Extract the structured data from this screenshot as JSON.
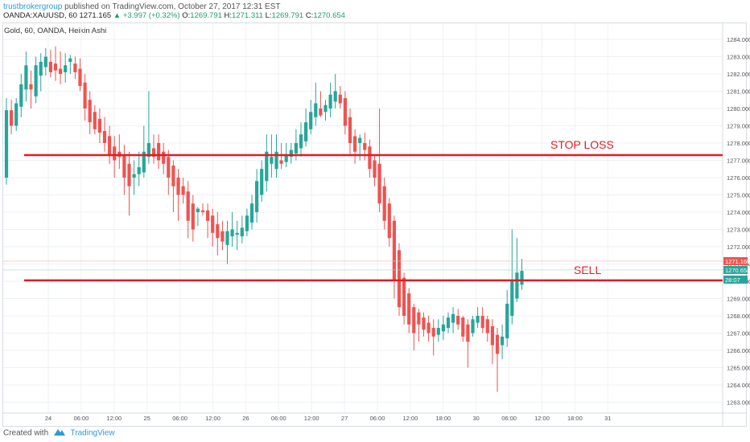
{
  "header": {
    "author": "trustbrokergroup",
    "published": "published on TradingView.com, October 27, 2017 12:31 EST",
    "symbol": "OANDA:XAUUSD, 60",
    "last": "1271.165",
    "change": "▲ +3.997 (+0.32%)",
    "o_label": "O:",
    "o_val": "1269.791",
    "h_label": "H:",
    "h_val": "1271.311",
    "l_label": "L:",
    "l_val": "1269.791",
    "c_label": "C:",
    "c_val": "1270.654"
  },
  "legend": "Gold, 60, OANDA, Heikin Ashi",
  "footer": {
    "created_with": "Created with",
    "brand": "TradingView"
  },
  "colors": {
    "up": "#26a69a",
    "down": "#ef5350",
    "level_line": "#e31b23",
    "last_badge": "#ef5350",
    "close_badge": "#26a69a"
  },
  "chart_data": {
    "type": "candlestick",
    "style": "Heikin Ashi",
    "ylim": [
      1262.5,
      1284.5
    ],
    "y_ticks": [
      "1263.000",
      "1264.000",
      "1265.000",
      "1266.000",
      "1267.000",
      "1268.000",
      "1269.000",
      "1270.000",
      "1271.000",
      "1272.000",
      "1273.000",
      "1274.000",
      "1275.000",
      "1276.000",
      "1277.000",
      "1278.000",
      "1279.000",
      "1280.000",
      "1281.000",
      "1282.000",
      "1283.000",
      "1284.000"
    ],
    "x_ticks": [
      "24",
      "06:00",
      "12:00",
      "25",
      "06:00",
      "12:00",
      "26",
      "06:00",
      "12:00",
      "27",
      "06:00",
      "12:00",
      "18:00",
      "30",
      "06:00",
      "12:00",
      "18:00",
      "31"
    ],
    "horizontal_levels": [
      {
        "label": "STOP LOSS",
        "value": 1277.3
      },
      {
        "label": "SELL",
        "value": 1270.05
      }
    ],
    "price_badges": [
      {
        "value": 1271.165,
        "label": "1271.165",
        "kind": "last"
      },
      {
        "value": 1270.654,
        "label": "1270.654",
        "kind": "close"
      },
      {
        "value": 1270.1,
        "label": "28:07",
        "kind": "countdown"
      }
    ],
    "candles": [
      {
        "o": 1276.0,
        "h": 1280.6,
        "l": 1275.6,
        "c": 1279.9
      },
      {
        "o": 1279.9,
        "h": 1280.5,
        "l": 1278.5,
        "c": 1279.0
      },
      {
        "o": 1279.0,
        "h": 1280.6,
        "l": 1278.7,
        "c": 1280.3
      },
      {
        "o": 1280.1,
        "h": 1282.0,
        "l": 1279.5,
        "c": 1281.4
      },
      {
        "o": 1281.1,
        "h": 1283.3,
        "l": 1280.4,
        "c": 1282.5
      },
      {
        "o": 1281.4,
        "h": 1282.2,
        "l": 1280.0,
        "c": 1281.1
      },
      {
        "o": 1280.7,
        "h": 1283.0,
        "l": 1280.3,
        "c": 1282.5
      },
      {
        "o": 1281.9,
        "h": 1283.2,
        "l": 1281.0,
        "c": 1282.7
      },
      {
        "o": 1282.4,
        "h": 1283.5,
        "l": 1281.9,
        "c": 1283.0
      },
      {
        "o": 1282.7,
        "h": 1283.4,
        "l": 1281.8,
        "c": 1282.1
      },
      {
        "o": 1282.6,
        "h": 1283.6,
        "l": 1281.6,
        "c": 1282.2
      },
      {
        "o": 1282.3,
        "h": 1283.3,
        "l": 1281.4,
        "c": 1282.0
      },
      {
        "o": 1282.1,
        "h": 1283.2,
        "l": 1281.5,
        "c": 1282.5
      },
      {
        "o": 1282.7,
        "h": 1283.1,
        "l": 1282.0,
        "c": 1282.9
      },
      {
        "o": 1282.6,
        "h": 1283.0,
        "l": 1281.7,
        "c": 1282.1
      },
      {
        "o": 1282.3,
        "h": 1282.9,
        "l": 1281.0,
        "c": 1281.3
      },
      {
        "o": 1281.5,
        "h": 1282.0,
        "l": 1279.3,
        "c": 1280.0
      },
      {
        "o": 1280.5,
        "h": 1281.0,
        "l": 1278.5,
        "c": 1279.2
      },
      {
        "o": 1279.8,
        "h": 1280.2,
        "l": 1278.5,
        "c": 1278.8
      },
      {
        "o": 1279.4,
        "h": 1280.0,
        "l": 1278.0,
        "c": 1278.6
      },
      {
        "o": 1278.7,
        "h": 1279.5,
        "l": 1277.5,
        "c": 1278.0
      },
      {
        "o": 1278.4,
        "h": 1279.0,
        "l": 1276.8,
        "c": 1277.3
      },
      {
        "o": 1277.8,
        "h": 1278.4,
        "l": 1276.0,
        "c": 1277.0
      },
      {
        "o": 1277.5,
        "h": 1278.5,
        "l": 1276.5,
        "c": 1277.2
      },
      {
        "o": 1277.3,
        "h": 1277.9,
        "l": 1275.0,
        "c": 1276.0
      },
      {
        "o": 1276.8,
        "h": 1277.5,
        "l": 1273.8,
        "c": 1275.5
      },
      {
        "o": 1276.0,
        "h": 1277.0,
        "l": 1275.0,
        "c": 1276.2
      },
      {
        "o": 1276.2,
        "h": 1277.5,
        "l": 1275.5,
        "c": 1276.6
      },
      {
        "o": 1276.3,
        "h": 1279.0,
        "l": 1276.0,
        "c": 1277.5
      },
      {
        "o": 1277.2,
        "h": 1281.0,
        "l": 1276.8,
        "c": 1278.0
      },
      {
        "o": 1277.7,
        "h": 1278.5,
        "l": 1276.8,
        "c": 1277.2
      },
      {
        "o": 1278.0,
        "h": 1278.5,
        "l": 1276.5,
        "c": 1277.0
      },
      {
        "o": 1277.5,
        "h": 1278.0,
        "l": 1276.2,
        "c": 1276.8
      },
      {
        "o": 1277.2,
        "h": 1277.6,
        "l": 1275.0,
        "c": 1276.0
      },
      {
        "o": 1276.7,
        "h": 1277.0,
        "l": 1274.0,
        "c": 1275.5
      },
      {
        "o": 1276.0,
        "h": 1276.5,
        "l": 1273.5,
        "c": 1275.0
      },
      {
        "o": 1275.5,
        "h": 1276.0,
        "l": 1274.5,
        "c": 1275.0
      },
      {
        "o": 1275.2,
        "h": 1275.8,
        "l": 1272.5,
        "c": 1273.5
      },
      {
        "o": 1274.5,
        "h": 1275.0,
        "l": 1272.3,
        "c": 1273.0
      },
      {
        "o": 1274.0,
        "h": 1274.3,
        "l": 1273.2,
        "c": 1274.2
      },
      {
        "o": 1274.1,
        "h": 1274.5,
        "l": 1273.8,
        "c": 1274.0
      },
      {
        "o": 1274.1,
        "h": 1274.5,
        "l": 1272.5,
        "c": 1273.5
      },
      {
        "o": 1273.8,
        "h": 1274.2,
        "l": 1272.0,
        "c": 1272.8
      },
      {
        "o": 1273.3,
        "h": 1274.0,
        "l": 1271.5,
        "c": 1272.5
      },
      {
        "o": 1272.9,
        "h": 1273.5,
        "l": 1271.8,
        "c": 1272.3
      },
      {
        "o": 1272.1,
        "h": 1273.5,
        "l": 1271.0,
        "c": 1272.9
      },
      {
        "o": 1272.6,
        "h": 1274.0,
        "l": 1272.0,
        "c": 1273.0
      },
      {
        "o": 1272.7,
        "h": 1273.5,
        "l": 1271.8,
        "c": 1272.8
      },
      {
        "o": 1272.6,
        "h": 1273.8,
        "l": 1272.2,
        "c": 1273.1
      },
      {
        "o": 1272.9,
        "h": 1274.2,
        "l": 1272.6,
        "c": 1273.8
      },
      {
        "o": 1273.4,
        "h": 1275.0,
        "l": 1273.0,
        "c": 1274.5
      },
      {
        "o": 1274.0,
        "h": 1276.5,
        "l": 1273.4,
        "c": 1275.8
      },
      {
        "o": 1275.0,
        "h": 1277.0,
        "l": 1274.6,
        "c": 1276.5
      },
      {
        "o": 1275.8,
        "h": 1278.5,
        "l": 1275.2,
        "c": 1277.5
      },
      {
        "o": 1276.8,
        "h": 1278.5,
        "l": 1276.0,
        "c": 1277.2
      },
      {
        "o": 1276.5,
        "h": 1278.5,
        "l": 1276.0,
        "c": 1277.5
      },
      {
        "o": 1277.0,
        "h": 1278.0,
        "l": 1276.5,
        "c": 1276.8
      },
      {
        "o": 1276.9,
        "h": 1278.0,
        "l": 1276.6,
        "c": 1277.3
      },
      {
        "o": 1277.2,
        "h": 1278.0,
        "l": 1276.8,
        "c": 1277.6
      },
      {
        "o": 1277.4,
        "h": 1278.8,
        "l": 1277.0,
        "c": 1278.0
      },
      {
        "o": 1277.7,
        "h": 1279.2,
        "l": 1277.2,
        "c": 1278.5
      },
      {
        "o": 1278.1,
        "h": 1280.0,
        "l": 1277.8,
        "c": 1279.2
      },
      {
        "o": 1278.8,
        "h": 1280.5,
        "l": 1278.5,
        "c": 1279.8
      },
      {
        "o": 1279.5,
        "h": 1281.5,
        "l": 1279.0,
        "c": 1280.3
      },
      {
        "o": 1280.0,
        "h": 1281.0,
        "l": 1279.5,
        "c": 1279.6
      },
      {
        "o": 1279.8,
        "h": 1280.5,
        "l": 1279.3,
        "c": 1280.2
      },
      {
        "o": 1280.0,
        "h": 1281.5,
        "l": 1279.5,
        "c": 1280.8
      },
      {
        "o": 1280.4,
        "h": 1282.0,
        "l": 1280.0,
        "c": 1281.0
      },
      {
        "o": 1280.8,
        "h": 1281.3,
        "l": 1280.0,
        "c": 1280.3
      },
      {
        "o": 1280.6,
        "h": 1281.0,
        "l": 1278.5,
        "c": 1279.0
      },
      {
        "o": 1279.5,
        "h": 1280.0,
        "l": 1277.3,
        "c": 1278.0
      },
      {
        "o": 1278.4,
        "h": 1278.8,
        "l": 1276.8,
        "c": 1277.5
      },
      {
        "o": 1278.0,
        "h": 1278.5,
        "l": 1277.0,
        "c": 1278.3
      },
      {
        "o": 1278.0,
        "h": 1278.6,
        "l": 1277.0,
        "c": 1277.6
      },
      {
        "o": 1277.8,
        "h": 1278.2,
        "l": 1276.0,
        "c": 1276.5
      },
      {
        "o": 1277.0,
        "h": 1277.3,
        "l": 1275.5,
        "c": 1276.0
      },
      {
        "o": 1276.8,
        "h": 1280.0,
        "l": 1274.0,
        "c": 1274.5
      },
      {
        "o": 1275.5,
        "h": 1276.0,
        "l": 1273.0,
        "c": 1273.5
      },
      {
        "o": 1274.5,
        "h": 1274.8,
        "l": 1272.0,
        "c": 1272.5
      },
      {
        "o": 1273.5,
        "h": 1273.8,
        "l": 1269.0,
        "c": 1270.0
      },
      {
        "o": 1271.8,
        "h": 1272.2,
        "l": 1268.0,
        "c": 1268.5
      },
      {
        "o": 1270.2,
        "h": 1270.5,
        "l": 1267.5,
        "c": 1268.0
      },
      {
        "o": 1269.3,
        "h": 1269.6,
        "l": 1267.0,
        "c": 1267.5
      },
      {
        "o": 1268.5,
        "h": 1268.7,
        "l": 1266.0,
        "c": 1267.0
      },
      {
        "o": 1268.2,
        "h": 1268.4,
        "l": 1266.5,
        "c": 1267.5
      },
      {
        "o": 1267.9,
        "h": 1268.2,
        "l": 1266.8,
        "c": 1267.2
      },
      {
        "o": 1267.6,
        "h": 1268.0,
        "l": 1266.5,
        "c": 1267.0
      },
      {
        "o": 1267.3,
        "h": 1267.8,
        "l": 1265.7,
        "c": 1266.8
      },
      {
        "o": 1266.9,
        "h": 1267.8,
        "l": 1266.5,
        "c": 1267.3
      },
      {
        "o": 1267.1,
        "h": 1268.0,
        "l": 1266.6,
        "c": 1267.5
      },
      {
        "o": 1267.3,
        "h": 1268.2,
        "l": 1267.0,
        "c": 1267.9
      },
      {
        "o": 1267.6,
        "h": 1268.5,
        "l": 1267.0,
        "c": 1268.1
      },
      {
        "o": 1268.0,
        "h": 1268.4,
        "l": 1267.2,
        "c": 1267.5
      },
      {
        "o": 1267.9,
        "h": 1268.0,
        "l": 1266.5,
        "c": 1266.8
      },
      {
        "o": 1267.5,
        "h": 1267.8,
        "l": 1265.0,
        "c": 1266.5
      },
      {
        "o": 1267.0,
        "h": 1268.0,
        "l": 1266.8,
        "c": 1267.8
      },
      {
        "o": 1267.6,
        "h": 1268.5,
        "l": 1267.3,
        "c": 1268.0
      },
      {
        "o": 1268.0,
        "h": 1268.5,
        "l": 1267.0,
        "c": 1267.3
      },
      {
        "o": 1267.8,
        "h": 1268.0,
        "l": 1266.5,
        "c": 1267.0
      },
      {
        "o": 1267.4,
        "h": 1267.8,
        "l": 1265.2,
        "c": 1266.3
      },
      {
        "o": 1266.9,
        "h": 1267.3,
        "l": 1263.6,
        "c": 1265.8
      },
      {
        "o": 1266.3,
        "h": 1267.5,
        "l": 1265.5,
        "c": 1266.8
      },
      {
        "o": 1266.7,
        "h": 1269.5,
        "l": 1266.2,
        "c": 1268.7
      },
      {
        "o": 1268.0,
        "h": 1273.0,
        "l": 1267.5,
        "c": 1270.0
      },
      {
        "o": 1269.0,
        "h": 1272.5,
        "l": 1268.8,
        "c": 1270.5
      },
      {
        "o": 1269.8,
        "h": 1271.3,
        "l": 1269.5,
        "c": 1270.6
      }
    ]
  }
}
